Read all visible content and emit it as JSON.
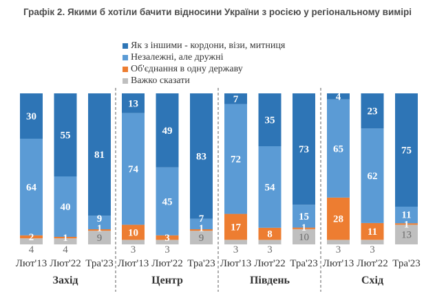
{
  "chart_data": {
    "type": "bar",
    "stacked": true,
    "title": "Графік 2. Якими б хотіли бачити відносини України з росією у регіональному вимірі",
    "xlabel": "",
    "ylabel": "",
    "ylim": [
      0,
      100
    ],
    "grid": false,
    "legend_position": "top-center",
    "groups": [
      "Захід",
      "Центр",
      "Південь",
      "Схід"
    ],
    "categories": [
      "Лют'13",
      "Лют'22",
      "Тра'23"
    ],
    "series": [
      {
        "name": "Важко сказати",
        "color": "#bfbfbf",
        "values": [
          [
            4,
            4,
            9
          ],
          [
            3,
            3,
            9
          ],
          [
            3,
            3,
            10
          ],
          [
            3,
            3,
            13
          ]
        ]
      },
      {
        "name": "Об'єднання в одну державу",
        "color": "#ed7d31",
        "values": [
          [
            2,
            1,
            1
          ],
          [
            10,
            3,
            1
          ],
          [
            17,
            8,
            1
          ],
          [
            28,
            11,
            1
          ]
        ]
      },
      {
        "name": "Незалежні, але дружні",
        "color": "#5b9bd5",
        "values": [
          [
            64,
            40,
            9
          ],
          [
            74,
            45,
            7
          ],
          [
            72,
            54,
            15
          ],
          [
            65,
            62,
            11
          ]
        ]
      },
      {
        "name": "Як з іншими - кордони, візи, митниця",
        "color": "#2e75b6",
        "values": [
          [
            30,
            55,
            81
          ],
          [
            13,
            49,
            83
          ],
          [
            7,
            35,
            73
          ],
          [
            4,
            23,
            75
          ]
        ]
      }
    ],
    "legend": [
      {
        "label": "Як з іншими - кордони, візи, митниця",
        "color": "#2e75b6"
      },
      {
        "label": "Незалежні, але дружні",
        "color": "#5b9bd5"
      },
      {
        "label": "Об'єднання в одну державу",
        "color": "#ed7d31"
      },
      {
        "label": "Важко сказати",
        "color": "#bfbfbf"
      }
    ]
  }
}
